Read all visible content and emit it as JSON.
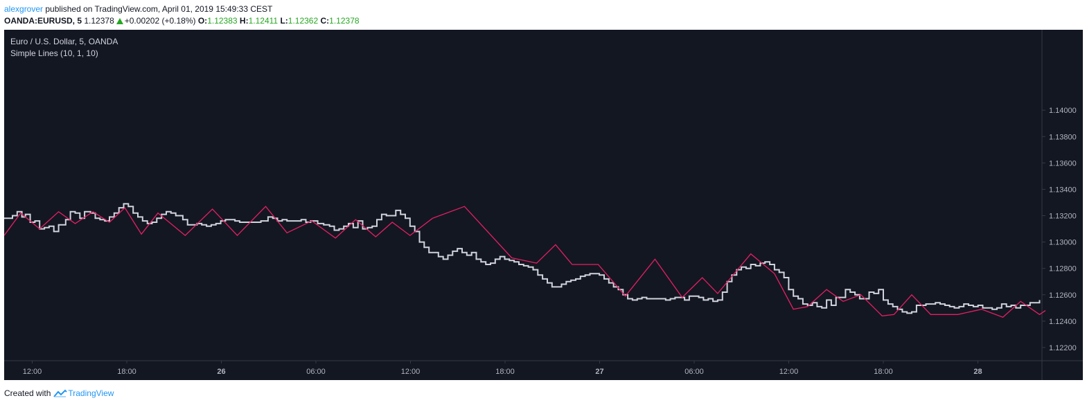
{
  "header": {
    "author": "alexgrover",
    "published": "published on TradingView.com, April 01, 2019 15:49:33 CEST"
  },
  "ticker": {
    "symbol": "OANDA:EURUSD, 5",
    "last": "1.12378",
    "change": "+0.00202 (+0.18%)",
    "o_label": "O:",
    "o": "1.12383",
    "h_label": "H:",
    "h": "1.12411",
    "l_label": "L:",
    "l": "1.12362",
    "c_label": "C:",
    "c": "1.12378"
  },
  "footer": {
    "created_with": "Created with",
    "brand": "TradingView"
  },
  "colors": {
    "bg": "#131722",
    "price": "#d1d4dc",
    "indicator": "#e91e63",
    "axis_text": "#b2b5be",
    "up": "#26a622"
  },
  "chart_data": {
    "type": "line",
    "title": "Euro / U.S. Dollar, 5, OANDA",
    "subtitle": "Simple Lines (10, 1, 10)",
    "ylim": [
      1.121,
      1.1461
    ],
    "y_ticks": [
      "1.14000",
      "1.13800",
      "1.13600",
      "1.13400",
      "1.13200",
      "1.13000",
      "1.12800",
      "1.12600",
      "1.12400",
      "1.12200"
    ],
    "x_ticks": [
      {
        "label": "12:00",
        "bold": false
      },
      {
        "label": "18:00",
        "bold": false
      },
      {
        "label": "26",
        "bold": true
      },
      {
        "label": "06:00",
        "bold": false
      },
      {
        "label": "12:00",
        "bold": false
      },
      {
        "label": "18:00",
        "bold": false
      },
      {
        "label": "27",
        "bold": true
      },
      {
        "label": "06:00",
        "bold": false
      },
      {
        "label": "12:00",
        "bold": false
      },
      {
        "label": "18:00",
        "bold": false
      },
      {
        "label": "28",
        "bold": true
      }
    ],
    "grid": false,
    "series": [
      {
        "values": [
          [
            0,
            1.1318
          ],
          [
            7,
            1.132
          ],
          [
            11,
            1.1323
          ],
          [
            15,
            1.1319
          ],
          [
            18,
            1.1321
          ],
          [
            22,
            1.1315
          ],
          [
            26,
            1.1316
          ],
          [
            30,
            1.131
          ],
          [
            34,
            1.1311
          ],
          [
            38,
            1.1312
          ],
          [
            42,
            1.1308
          ],
          [
            46,
            1.1313
          ],
          [
            52,
            1.1317
          ],
          [
            56,
            1.1323
          ],
          [
            60,
            1.1322
          ],
          [
            64,
            1.1318
          ],
          [
            68,
            1.1323
          ],
          [
            73,
            1.1322
          ],
          [
            77,
            1.1318
          ],
          [
            81,
            1.1317
          ],
          [
            85,
            1.1316
          ],
          [
            89,
            1.1319
          ],
          [
            93,
            1.1322
          ],
          [
            97,
            1.1326
          ],
          [
            101,
            1.1329
          ],
          [
            105,
            1.1327
          ],
          [
            109,
            1.1322
          ],
          [
            113,
            1.1319
          ],
          [
            117,
            1.1316
          ],
          [
            121,
            1.1314
          ],
          [
            125,
            1.1315
          ],
          [
            129,
            1.1318
          ],
          [
            133,
            1.1321
          ],
          [
            137,
            1.1323
          ],
          [
            141,
            1.1322
          ],
          [
            145,
            1.132
          ],
          [
            151,
            1.1317
          ],
          [
            155,
            1.1313
          ],
          [
            159,
            1.1313
          ],
          [
            163,
            1.1314
          ],
          [
            167,
            1.1313
          ],
          [
            171,
            1.1312
          ],
          [
            175,
            1.1313
          ],
          [
            179,
            1.1314
          ],
          [
            183,
            1.1316
          ],
          [
            187,
            1.1317
          ],
          [
            191,
            1.1317
          ],
          [
            195,
            1.1316
          ],
          [
            199,
            1.1315
          ],
          [
            205,
            1.1315
          ],
          [
            211,
            1.1315
          ],
          [
            217,
            1.1316
          ],
          [
            223,
            1.1319
          ],
          [
            227,
            1.1318
          ],
          [
            231,
            1.1316
          ],
          [
            235,
            1.1317
          ],
          [
            239,
            1.1316
          ],
          [
            245,
            1.1316
          ],
          [
            251,
            1.1317
          ],
          [
            255,
            1.1315
          ],
          [
            259,
            1.1316
          ],
          [
            265,
            1.1314
          ],
          [
            270,
            1.1313
          ],
          [
            275,
            1.1312
          ],
          [
            279,
            1.1309
          ],
          [
            283,
            1.131
          ],
          [
            287,
            1.1312
          ],
          [
            291,
            1.1314
          ],
          [
            295,
            1.1311
          ],
          [
            299,
            1.1316
          ],
          [
            303,
            1.131
          ],
          [
            307,
            1.1311
          ],
          [
            311,
            1.1312
          ],
          [
            315,
            1.1317
          ],
          [
            319,
            1.1321
          ],
          [
            323,
            1.132
          ],
          [
            327,
            1.132
          ],
          [
            331,
            1.1324
          ],
          [
            335,
            1.1321
          ],
          [
            339,
            1.1318
          ],
          [
            343,
            1.1312
          ],
          [
            347,
            1.1308
          ],
          [
            351,
            1.13
          ],
          [
            355,
            1.1296
          ],
          [
            359,
            1.1292
          ],
          [
            363,
            1.1292
          ],
          [
            367,
            1.1289
          ],
          [
            371,
            1.1287
          ],
          [
            375,
            1.129
          ],
          [
            379,
            1.1293
          ],
          [
            383,
            1.1295
          ],
          [
            387,
            1.1292
          ],
          [
            391,
            1.129
          ],
          [
            395,
            1.1292
          ],
          [
            399,
            1.1287
          ],
          [
            403,
            1.1285
          ],
          [
            407,
            1.1283
          ],
          [
            411,
            1.1284
          ],
          [
            415,
            1.1287
          ],
          [
            419,
            1.1289
          ],
          [
            423,
            1.1287
          ],
          [
            427,
            1.1286
          ],
          [
            431,
            1.1285
          ],
          [
            435,
            1.1283
          ],
          [
            439,
            1.1282
          ],
          [
            443,
            1.1281
          ],
          [
            447,
            1.1279
          ],
          [
            451,
            1.1275
          ],
          [
            455,
            1.1272
          ],
          [
            459,
            1.1269
          ],
          [
            463,
            1.1266
          ],
          [
            467,
            1.1266
          ],
          [
            471,
            1.1268
          ],
          [
            475,
            1.127
          ],
          [
            479,
            1.1271
          ],
          [
            483,
            1.1272
          ],
          [
            487,
            1.1274
          ],
          [
            491,
            1.1275
          ],
          [
            495,
            1.1276
          ],
          [
            499,
            1.1276
          ],
          [
            503,
            1.1275
          ],
          [
            507,
            1.1272
          ],
          [
            511,
            1.1269
          ],
          [
            515,
            1.1266
          ],
          [
            519,
            1.1264
          ],
          [
            523,
            1.126
          ],
          [
            527,
            1.1257
          ],
          [
            531,
            1.1256
          ],
          [
            535,
            1.1257
          ],
          [
            539,
            1.1258
          ],
          [
            543,
            1.1257
          ],
          [
            547,
            1.1257
          ],
          [
            551,
            1.1257
          ],
          [
            555,
            1.1257
          ],
          [
            559,
            1.1256
          ],
          [
            563,
            1.1257
          ],
          [
            567,
            1.1258
          ],
          [
            571,
            1.1258
          ],
          [
            575,
            1.1256
          ],
          [
            579,
            1.1259
          ],
          [
            583,
            1.1259
          ],
          [
            587,
            1.1258
          ],
          [
            591,
            1.1256
          ],
          [
            595,
            1.1257
          ],
          [
            599,
            1.1255
          ],
          [
            603,
            1.1256
          ],
          [
            607,
            1.1262
          ],
          [
            611,
            1.127
          ],
          [
            615,
            1.1275
          ],
          [
            619,
            1.1279
          ],
          [
            623,
            1.1281
          ],
          [
            627,
            1.128
          ],
          [
            631,
            1.1283
          ],
          [
            635,
            1.1282
          ],
          [
            639,
            1.1284
          ],
          [
            643,
            1.1285
          ],
          [
            647,
            1.1283
          ],
          [
            651,
            1.1279
          ],
          [
            655,
            1.1277
          ],
          [
            659,
            1.1273
          ],
          [
            663,
            1.1264
          ],
          [
            667,
            1.1259
          ],
          [
            671,
            1.1257
          ],
          [
            675,
            1.1253
          ],
          [
            679,
            1.1252
          ],
          [
            683,
            1.1254
          ],
          [
            687,
            1.1251
          ],
          [
            691,
            1.125
          ],
          [
            695,
            1.1256
          ],
          [
            699,
            1.1252
          ],
          [
            703,
            1.1258
          ],
          [
            707,
            1.1258
          ],
          [
            711,
            1.1264
          ],
          [
            715,
            1.1262
          ],
          [
            719,
            1.126
          ],
          [
            723,
            1.1257
          ],
          [
            727,
            1.1257
          ],
          [
            731,
            1.1262
          ],
          [
            735,
            1.1261
          ],
          [
            739,
            1.1264
          ],
          [
            743,
            1.1256
          ],
          [
            747,
            1.1253
          ],
          [
            751,
            1.1251
          ],
          [
            755,
            1.1249
          ],
          [
            759,
            1.1247
          ],
          [
            763,
            1.1246
          ],
          [
            767,
            1.1247
          ],
          [
            771,
            1.1252
          ],
          [
            775,
            1.1252
          ],
          [
            779,
            1.1253
          ],
          [
            783,
            1.1253
          ],
          [
            787,
            1.1254
          ],
          [
            791,
            1.1253
          ],
          [
            795,
            1.1252
          ],
          [
            799,
            1.1251
          ],
          [
            803,
            1.125
          ],
          [
            807,
            1.1251
          ],
          [
            811,
            1.1253
          ],
          [
            815,
            1.1252
          ],
          [
            819,
            1.1251
          ],
          [
            823,
            1.1252
          ],
          [
            827,
            1.125
          ],
          [
            831,
            1.125
          ],
          [
            835,
            1.1249
          ],
          [
            839,
            1.125
          ],
          [
            843,
            1.1253
          ],
          [
            847,
            1.1251
          ],
          [
            851,
            1.1252
          ],
          [
            855,
            1.125
          ],
          [
            859,
            1.1252
          ],
          [
            863,
            1.1252
          ],
          [
            867,
            1.1254
          ],
          [
            871,
            1.1254
          ],
          [
            875,
            1.1256
          ]
        ]
      },
      {
        "values": [
          [
            0,
            1.1305
          ],
          [
            14,
            1.1322
          ],
          [
            30,
            1.131
          ],
          [
            46,
            1.1323
          ],
          [
            60,
            1.1314
          ],
          [
            75,
            1.1323
          ],
          [
            89,
            1.1315
          ],
          [
            102,
            1.1326
          ],
          [
            116,
            1.1306
          ],
          [
            130,
            1.1322
          ],
          [
            153,
            1.1305
          ],
          [
            176,
            1.1325
          ],
          [
            197,
            1.1305
          ],
          [
            221,
            1.1327
          ],
          [
            239,
            1.1307
          ],
          [
            260,
            1.1316
          ],
          [
            280,
            1.1303
          ],
          [
            297,
            1.1317
          ],
          [
            314,
            1.1304
          ],
          [
            328,
            1.1315
          ],
          [
            343,
            1.1305
          ],
          [
            362,
            1.1318
          ],
          [
            389,
            1.1327
          ],
          [
            429,
            1.1288
          ],
          [
            450,
            1.1284
          ],
          [
            466,
            1.1298
          ],
          [
            480,
            1.1283
          ],
          [
            502,
            1.1283
          ],
          [
            525,
            1.1259
          ],
          [
            550,
            1.1287
          ],
          [
            573,
            1.1258
          ],
          [
            590,
            1.1273
          ],
          [
            603,
            1.1261
          ],
          [
            631,
            1.1291
          ],
          [
            651,
            1.1276
          ],
          [
            667,
            1.1249
          ],
          [
            679,
            1.1251
          ],
          [
            695,
            1.1264
          ],
          [
            709,
            1.1255
          ],
          [
            724,
            1.126
          ],
          [
            742,
            1.1244
          ],
          [
            752,
            1.1245
          ],
          [
            767,
            1.126
          ],
          [
            783,
            1.1245
          ],
          [
            806,
            1.1245
          ],
          [
            826,
            1.1249
          ],
          [
            844,
            1.1243
          ],
          [
            859,
            1.1255
          ],
          [
            875,
            1.1245
          ],
          [
            880,
            1.1248
          ]
        ]
      }
    ]
  }
}
